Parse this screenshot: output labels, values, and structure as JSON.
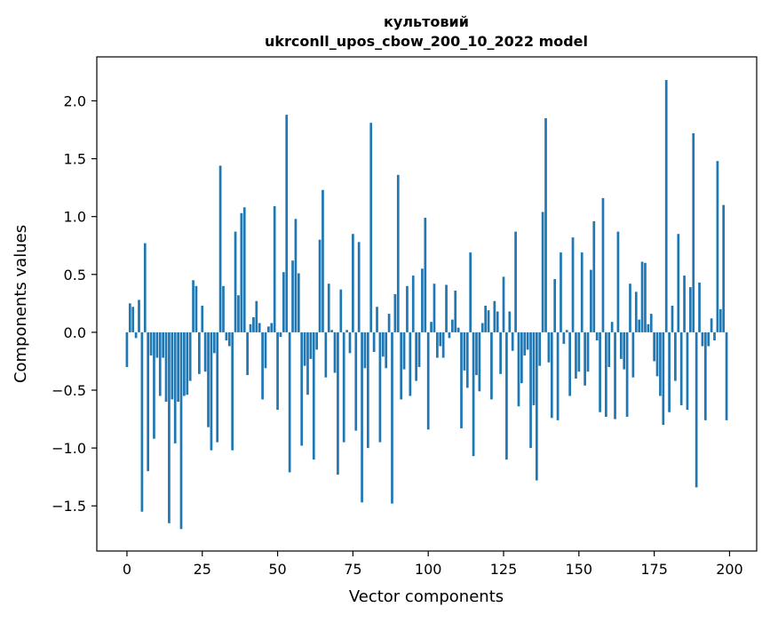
{
  "chart_data": {
    "type": "bar",
    "title_line1": "культовий",
    "title_line2": "ukrconll_upos_cbow_200_10_2022 model",
    "xlabel": "Vector components",
    "ylabel": "Components values",
    "xlim": [
      -10,
      209
    ],
    "ylim": [
      -1.89,
      2.38
    ],
    "xticks": [
      0,
      25,
      50,
      75,
      100,
      125,
      150,
      175,
      200
    ],
    "xtick_labels": [
      "0",
      "25",
      "50",
      "75",
      "100",
      "125",
      "150",
      "175",
      "200"
    ],
    "yticks": [
      -1.5,
      -1.0,
      -0.5,
      0.0,
      0.5,
      1.0,
      1.5,
      2.0
    ],
    "ytick_labels": [
      "−1.5",
      "−1.0",
      "−0.5",
      "0.0",
      "0.5",
      "1.0",
      "1.5",
      "2.0"
    ],
    "color": "#1f77b4",
    "values": [
      -0.3,
      0.25,
      0.22,
      -0.05,
      0.28,
      -1.55,
      0.77,
      -1.2,
      -0.2,
      -0.92,
      -0.22,
      -0.55,
      -0.22,
      -0.6,
      -1.65,
      -0.58,
      -0.96,
      -0.6,
      -1.7,
      -0.55,
      -0.54,
      -0.42,
      0.45,
      0.4,
      -0.36,
      0.23,
      -0.34,
      -0.82,
      -1.02,
      -0.18,
      -0.95,
      1.44,
      0.4,
      -0.07,
      -0.12,
      -1.02,
      0.87,
      0.32,
      1.03,
      1.08,
      -0.37,
      0.07,
      0.13,
      0.27,
      0.08,
      -0.58,
      -0.31,
      0.05,
      0.08,
      1.09,
      -0.67,
      -0.04,
      0.52,
      1.88,
      -1.21,
      0.62,
      0.98,
      0.51,
      -0.98,
      -0.29,
      -0.54,
      -0.23,
      -1.1,
      -0.15,
      0.8,
      1.23,
      -0.39,
      0.42,
      0.02,
      -0.35,
      -1.23,
      0.37,
      -0.95,
      0.02,
      -0.18,
      0.85,
      -0.85,
      0.78,
      -1.47,
      -0.31,
      -1.0,
      1.81,
      -0.17,
      0.22,
      -0.95,
      -0.21,
      -0.31,
      0.16,
      -1.48,
      0.33,
      1.36,
      -0.58,
      -0.32,
      0.4,
      -0.55,
      0.49,
      -0.42,
      -0.3,
      0.55,
      0.99,
      -0.84,
      0.09,
      0.42,
      -0.22,
      -0.12,
      -0.22,
      0.41,
      -0.05,
      0.11,
      0.36,
      0.04,
      -0.83,
      -0.33,
      -0.48,
      0.69,
      -1.07,
      -0.37,
      -0.51,
      0.08,
      0.23,
      0.19,
      -0.58,
      0.27,
      0.18,
      -0.36,
      0.48,
      -1.1,
      0.18,
      -0.16,
      0.87,
      -0.64,
      -0.44,
      -0.2,
      -0.15,
      -1.0,
      -0.63,
      -1.28,
      -0.29,
      1.04,
      1.85,
      -0.26,
      -0.74,
      0.46,
      -0.76,
      0.69,
      -0.1,
      0.02,
      -0.55,
      0.82,
      -0.4,
      -0.34,
      0.69,
      -0.46,
      -0.34,
      0.54,
      0.96,
      -0.07,
      -0.69,
      1.16,
      -0.73,
      -0.3,
      0.09,
      -0.75,
      0.87,
      -0.23,
      -0.32,
      -0.73,
      0.42,
      -0.39,
      0.35,
      0.11,
      0.61,
      0.6,
      0.07,
      0.16,
      -0.25,
      -0.38,
      -0.55,
      -0.8,
      2.18,
      -0.69,
      0.23,
      -0.42,
      0.85,
      -0.63,
      0.49,
      -0.67,
      0.39,
      1.72,
      -1.34,
      0.43,
      -0.12,
      -0.76,
      -0.12,
      0.12,
      -0.07,
      1.48,
      0.2,
      1.1,
      -0.76
    ]
  }
}
